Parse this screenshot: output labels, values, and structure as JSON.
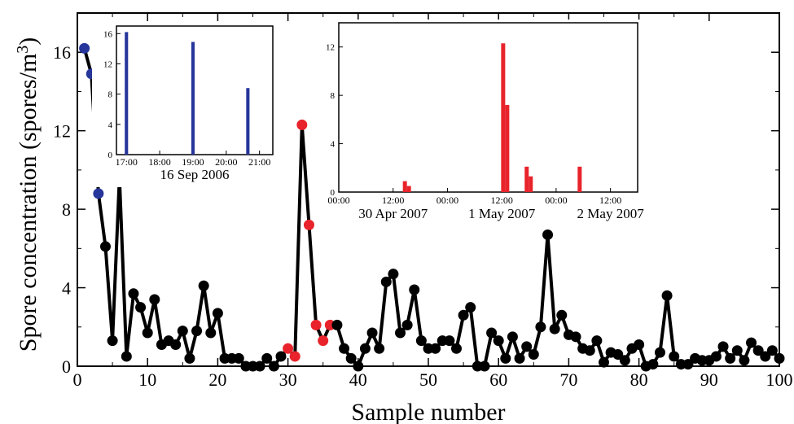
{
  "chart_data": [
    {
      "type": "line",
      "xlabel": "Sample number",
      "ylabel": "Spore concentration (spores/m",
      "ylabel_sup": "3",
      "ylabel_close": ")",
      "xlim": [
        0,
        100
      ],
      "ylim": [
        0,
        18
      ],
      "xticks": [
        0,
        10,
        20,
        30,
        40,
        50,
        60,
        70,
        80,
        90,
        100
      ],
      "yticks": [
        0,
        4,
        8,
        12,
        16
      ],
      "colors": {
        "line": "#000000",
        "default": "#000000",
        "blue": "#26369a",
        "red": "#e8232b"
      },
      "series": [
        {
          "x": [
            1,
            2,
            3,
            4,
            5,
            6,
            7,
            8,
            9,
            10,
            11,
            12,
            13,
            14,
            15,
            16,
            17,
            18,
            19,
            20,
            21,
            22,
            23,
            24,
            25,
            26,
            27,
            28,
            29,
            30,
            31,
            32,
            33,
            34,
            35,
            36,
            37,
            38,
            39,
            40,
            41,
            42,
            43,
            44,
            45,
            46,
            47,
            48,
            49,
            50,
            51,
            52,
            53,
            54,
            55,
            56,
            57,
            58,
            59,
            60,
            61,
            62,
            63,
            64,
            65,
            66,
            67,
            68,
            69,
            70,
            71,
            72,
            73,
            74,
            75,
            76,
            77,
            78,
            79,
            80,
            81,
            82,
            83,
            84,
            85,
            86,
            87,
            88,
            89,
            90,
            91,
            92,
            93,
            94,
            95,
            96,
            97,
            98,
            99,
            100
          ],
          "y": [
            16.2,
            14.9,
            8.8,
            6.1,
            1.3,
            9.6,
            0.5,
            3.7,
            3.0,
            1.7,
            3.4,
            1.1,
            1.3,
            1.1,
            1.8,
            0.4,
            1.8,
            4.1,
            1.7,
            2.7,
            0.4,
            0.4,
            0.4,
            0.0,
            0.0,
            0.0,
            0.4,
            0.0,
            0.5,
            0.9,
            0.5,
            12.3,
            7.2,
            2.1,
            1.3,
            2.1,
            2.1,
            0.9,
            0.4,
            0.0,
            0.9,
            1.7,
            0.9,
            4.3,
            4.7,
            1.7,
            2.1,
            3.9,
            1.3,
            0.9,
            0.9,
            1.3,
            1.3,
            0.9,
            2.6,
            3.0,
            0.0,
            0.0,
            1.7,
            1.3,
            0.4,
            1.5,
            0.4,
            1.0,
            0.6,
            2.0,
            6.7,
            1.9,
            2.6,
            1.6,
            1.5,
            0.9,
            0.8,
            1.3,
            0.2,
            0.7,
            0.6,
            0.3,
            0.9,
            1.1,
            0.0,
            0.1,
            0.7,
            3.6,
            0.5,
            0.1,
            0.1,
            0.4,
            0.3,
            0.3,
            0.5,
            1.0,
            0.4,
            0.8,
            0.3,
            1.2,
            0.8,
            0.5,
            0.8,
            0.4
          ],
          "blue_points": [
            1,
            2,
            3
          ],
          "red_points": [
            30,
            31,
            32,
            33,
            34,
            35,
            36
          ]
        }
      ]
    },
    {
      "type": "bar",
      "xlabel": "16 Sep 2006",
      "xlim": [
        16.7,
        21.4
      ],
      "ylim": [
        0,
        17
      ],
      "xtick_values": [
        17,
        18,
        19,
        20,
        21
      ],
      "xtick_labels": [
        "17:00",
        "18:00",
        "19:00",
        "20:00",
        "21:00"
      ],
      "ytick_values": [
        0,
        4,
        8,
        12,
        16
      ],
      "ytick_labels": [
        "0",
        "4",
        "8",
        "12",
        "16"
      ],
      "color": "#26369a",
      "bar_width": 0.1,
      "x": [
        17.0,
        19.0,
        20.65
      ],
      "values": [
        16.2,
        14.9,
        8.8
      ]
    },
    {
      "type": "bar",
      "xlabel_parts": [
        "30 Apr 2007",
        "1 May 2007",
        "2 May 2007"
      ],
      "xlim": [
        0,
        66
      ],
      "ylim": [
        0,
        14
      ],
      "xtick_values": [
        0,
        12,
        24,
        36,
        48,
        60
      ],
      "xtick_labels": [
        "00:00",
        "12:00",
        "00:00",
        "12:00",
        "00:00",
        "12:00"
      ],
      "ytick_values": [
        0,
        4,
        8,
        12
      ],
      "ytick_labels": [
        "0",
        "4",
        "8",
        "12"
      ],
      "color": "#e8232b",
      "bar_width": 0.9,
      "x": [
        14.6,
        15.5,
        36.3,
        37.2,
        41.5,
        42.4,
        53.2
      ],
      "values": [
        0.9,
        0.5,
        12.3,
        7.2,
        2.1,
        1.3,
        2.1
      ]
    }
  ]
}
